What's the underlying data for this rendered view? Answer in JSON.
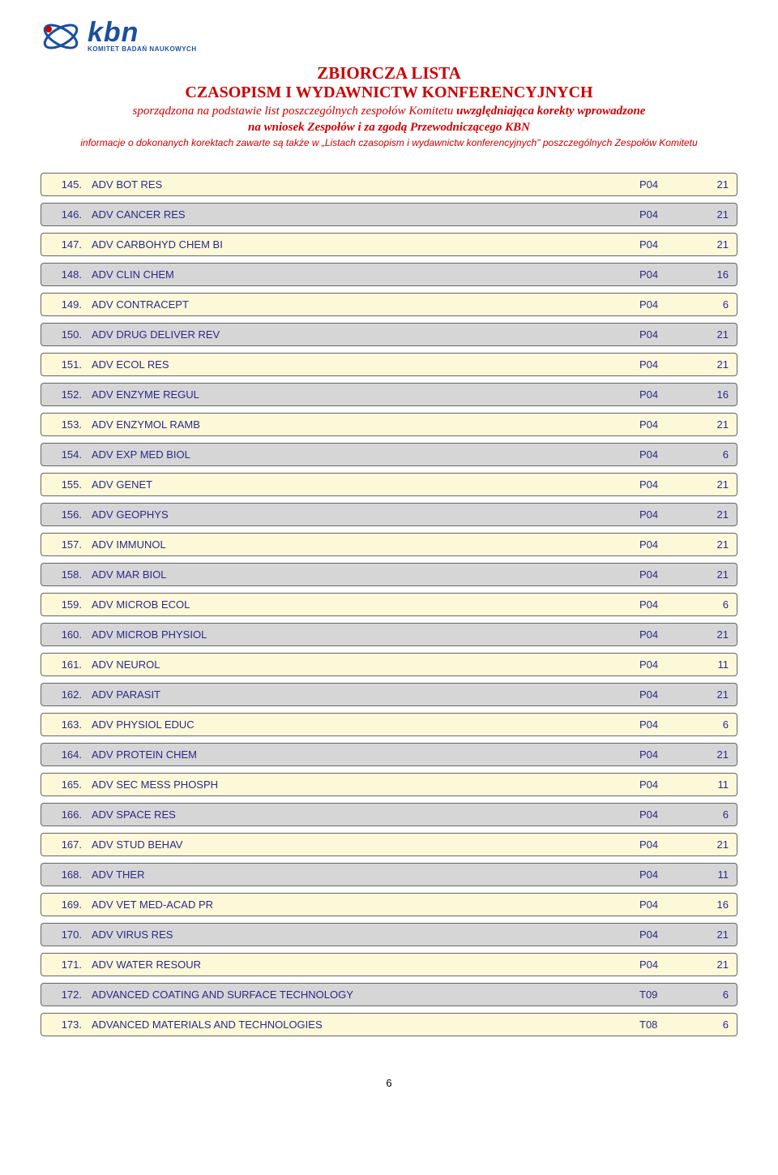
{
  "logo": {
    "brand": "kbn",
    "subtitle": "KOMITET BADAŃ NAUKOWYCH",
    "color": "#1a4fa0"
  },
  "header": {
    "title1": "ZBIORCZA LISTA",
    "title2": "CZASOPISM I WYDAWNICTW KONFERENCYJNYCH",
    "subtitle_prefix": "sporządzona na podstawie list poszczególnych zespołów Komitetu ",
    "subtitle_bold1": "uwzględniająca korekty wprowadzone",
    "subtitle_line2_bold": "na wniosek Zespołów i za zgodą Przewodniczącego KBN",
    "info": "informacje o dokonanych korektach zawarte są także w „Listach czasopism i wydawnictw konferencyjnych\" poszczególnych Zespołów Komitetu"
  },
  "colors": {
    "yellow_bg": "#fdf9d8",
    "gray_bg": "#d6d6d6",
    "row_border": "#666666",
    "text_blue": "#2a2a8a",
    "header_red": "#cc0000"
  },
  "rows": [
    {
      "num": "145.",
      "name": "ADV BOT RES",
      "code": "P04",
      "score": "21",
      "style": "yellow"
    },
    {
      "num": "146.",
      "name": "ADV CANCER RES",
      "code": "P04",
      "score": "21",
      "style": "gray"
    },
    {
      "num": "147.",
      "name": "ADV CARBOHYD CHEM BI",
      "code": "P04",
      "score": "21",
      "style": "yellow"
    },
    {
      "num": "148.",
      "name": "ADV CLIN CHEM",
      "code": "P04",
      "score": "16",
      "style": "gray"
    },
    {
      "num": "149.",
      "name": "ADV CONTRACEPT",
      "code": "P04",
      "score": "6",
      "style": "yellow"
    },
    {
      "num": "150.",
      "name": "ADV DRUG DELIVER REV",
      "code": "P04",
      "score": "21",
      "style": "gray"
    },
    {
      "num": "151.",
      "name": "ADV ECOL RES",
      "code": "P04",
      "score": "21",
      "style": "yellow"
    },
    {
      "num": "152.",
      "name": "ADV ENZYME REGUL",
      "code": "P04",
      "score": "16",
      "style": "gray"
    },
    {
      "num": "153.",
      "name": "ADV ENZYMOL RAMB",
      "code": "P04",
      "score": "21",
      "style": "yellow"
    },
    {
      "num": "154.",
      "name": "ADV EXP MED BIOL",
      "code": "P04",
      "score": "6",
      "style": "gray"
    },
    {
      "num": "155.",
      "name": "ADV GENET",
      "code": "P04",
      "score": "21",
      "style": "yellow"
    },
    {
      "num": "156.",
      "name": "ADV GEOPHYS",
      "code": "P04",
      "score": "21",
      "style": "gray"
    },
    {
      "num": "157.",
      "name": "ADV IMMUNOL",
      "code": "P04",
      "score": "21",
      "style": "yellow"
    },
    {
      "num": "158.",
      "name": "ADV MAR BIOL",
      "code": "P04",
      "score": "21",
      "style": "gray"
    },
    {
      "num": "159.",
      "name": "ADV MICROB ECOL",
      "code": "P04",
      "score": "6",
      "style": "yellow"
    },
    {
      "num": "160.",
      "name": "ADV MICROB PHYSIOL",
      "code": "P04",
      "score": "21",
      "style": "gray"
    },
    {
      "num": "161.",
      "name": "ADV NEUROL",
      "code": "P04",
      "score": "11",
      "style": "yellow"
    },
    {
      "num": "162.",
      "name": "ADV PARASIT",
      "code": "P04",
      "score": "21",
      "style": "gray"
    },
    {
      "num": "163.",
      "name": "ADV PHYSIOL EDUC",
      "code": "P04",
      "score": "6",
      "style": "yellow"
    },
    {
      "num": "164.",
      "name": "ADV PROTEIN CHEM",
      "code": "P04",
      "score": "21",
      "style": "gray"
    },
    {
      "num": "165.",
      "name": "ADV SEC MESS PHOSPH",
      "code": "P04",
      "score": "11",
      "style": "yellow"
    },
    {
      "num": "166.",
      "name": "ADV SPACE RES",
      "code": "P04",
      "score": "6",
      "style": "gray"
    },
    {
      "num": "167.",
      "name": "ADV STUD BEHAV",
      "code": "P04",
      "score": "21",
      "style": "yellow"
    },
    {
      "num": "168.",
      "name": "ADV THER",
      "code": "P04",
      "score": "11",
      "style": "gray"
    },
    {
      "num": "169.",
      "name": "ADV VET MED-ACAD PR",
      "code": "P04",
      "score": "16",
      "style": "yellow"
    },
    {
      "num": "170.",
      "name": "ADV VIRUS RES",
      "code": "P04",
      "score": "21",
      "style": "gray"
    },
    {
      "num": "171.",
      "name": "ADV WATER RESOUR",
      "code": "P04",
      "score": "21",
      "style": "yellow"
    },
    {
      "num": "172.",
      "name": "ADVANCED COATING AND SURFACE  TECHNOLOGY",
      "code": "T09",
      "score": "6",
      "style": "gray"
    },
    {
      "num": "173.",
      "name": "ADVANCED MATERIALS AND TECHNOLOGIES",
      "code": "T08",
      "score": "6",
      "style": "yellow"
    }
  ],
  "page_number": "6"
}
